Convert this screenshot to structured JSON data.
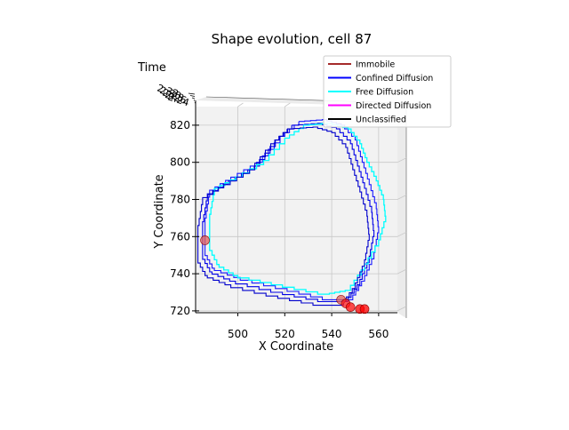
{
  "chart_data": {
    "type": "line",
    "title": "Shape evolution, cell 87",
    "xlabel": "X Coordinate",
    "ylabel": "Y Coordinate",
    "zlabel": "Time",
    "xlim": [
      482,
      568
    ],
    "ylim": [
      719,
      830
    ],
    "xticks": [
      500,
      520,
      540,
      560
    ],
    "yticks": [
      720,
      740,
      760,
      780,
      800,
      820
    ],
    "z_tick_labels": [
      "2.32",
      "2.30",
      "2.28",
      "2.26",
      "2.24"
    ],
    "grid": true,
    "legend_position": "top-right",
    "legend": [
      {
        "label": "Immobile",
        "color": "#a52a2a"
      },
      {
        "label": "Confined Diffusion",
        "color": "#0000ff"
      },
      {
        "label": "Free Diffusion",
        "color": "#00ffff"
      },
      {
        "label": "Directed Diffusion",
        "color": "#ff00ff"
      },
      {
        "label": "Unclassified",
        "color": "#000000"
      }
    ],
    "series": [
      {
        "category": "Confined Diffusion",
        "color": "#1a1aff",
        "points": [
          [
            526,
            822
          ],
          [
            536,
            823
          ],
          [
            544,
            820
          ],
          [
            550,
            812
          ],
          [
            553,
            800
          ],
          [
            556,
            788
          ],
          [
            559,
            775
          ],
          [
            560,
            762
          ],
          [
            558,
            748
          ],
          [
            554,
            736
          ],
          [
            549,
            726
          ],
          [
            541,
            726
          ],
          [
            521,
            732
          ],
          [
            501,
            738
          ],
          [
            490,
            743
          ],
          [
            486,
            752
          ],
          [
            486,
            770
          ],
          [
            488,
            785
          ],
          [
            497,
            792
          ],
          [
            508,
            800
          ],
          [
            518,
            814
          ],
          [
            526,
            822
          ]
        ]
      },
      {
        "category": "Confined Diffusion",
        "color": "#0000e6",
        "points": [
          [
            523,
            820
          ],
          [
            534,
            821
          ],
          [
            542,
            818
          ],
          [
            548,
            810
          ],
          [
            551,
            798
          ],
          [
            554,
            786
          ],
          [
            557,
            773
          ],
          [
            558,
            760
          ],
          [
            556,
            746
          ],
          [
            552,
            734
          ],
          [
            547,
            725
          ],
          [
            539,
            725
          ],
          [
            519,
            730
          ],
          [
            499,
            736
          ],
          [
            489,
            741
          ],
          [
            485,
            750
          ],
          [
            485,
            768
          ],
          [
            487,
            783
          ],
          [
            496,
            790
          ],
          [
            507,
            798
          ],
          [
            516,
            812
          ],
          [
            523,
            820
          ]
        ]
      },
      {
        "category": "Free Diffusion",
        "color": "#00ffff",
        "points": [
          [
            528,
            820
          ],
          [
            538,
            821
          ],
          [
            547,
            818
          ],
          [
            552,
            810
          ],
          [
            555,
            800
          ],
          [
            559,
            790
          ],
          [
            562,
            780
          ],
          [
            563,
            768
          ],
          [
            560,
            755
          ],
          [
            554,
            742
          ],
          [
            548,
            731
          ],
          [
            539,
            729
          ],
          [
            519,
            734
          ],
          [
            500,
            739
          ],
          [
            492,
            745
          ],
          [
            488,
            755
          ],
          [
            488,
            772
          ],
          [
            490,
            786
          ],
          [
            499,
            792
          ],
          [
            511,
            801
          ],
          [
            520,
            813
          ],
          [
            528,
            820
          ]
        ]
      },
      {
        "category": "Confined Diffusion",
        "color": "#0000cc",
        "points": [
          [
            521,
            818
          ],
          [
            532,
            819
          ],
          [
            540,
            816
          ],
          [
            546,
            808
          ],
          [
            549,
            796
          ],
          [
            552,
            784
          ],
          [
            555,
            771
          ],
          [
            556,
            758
          ],
          [
            554,
            744
          ],
          [
            550,
            732
          ],
          [
            545,
            723
          ],
          [
            537,
            723
          ],
          [
            517,
            728
          ],
          [
            497,
            734
          ],
          [
            487,
            739
          ],
          [
            483,
            748
          ],
          [
            483,
            766
          ],
          [
            485,
            781
          ],
          [
            494,
            788
          ],
          [
            505,
            796
          ],
          [
            514,
            810
          ],
          [
            521,
            818
          ]
        ]
      }
    ],
    "markers": [
      {
        "x": 486,
        "y": 758,
        "color": "#e0605c"
      },
      {
        "x": 544,
        "y": 726,
        "color": "#e0605c"
      },
      {
        "x": 546,
        "y": 724,
        "color": "#ff2020"
      },
      {
        "x": 548,
        "y": 722,
        "color": "#ff1010"
      },
      {
        "x": 552,
        "y": 721,
        "color": "#ff0000"
      },
      {
        "x": 554,
        "y": 721,
        "color": "#ff0000"
      }
    ]
  }
}
